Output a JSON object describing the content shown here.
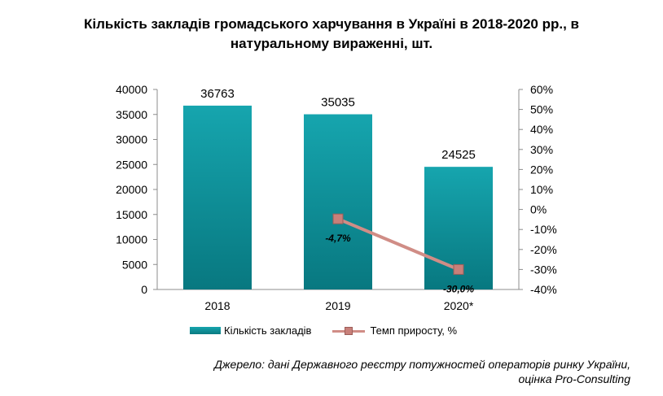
{
  "title_lines": [
    "Кількість закладів громадського харчування в Україні в 2018-2020 рр., в",
    "натуральному вираженні, шт."
  ],
  "source_lines": [
    "Джерело: дані Державного реєстру потужностей операторів ринку України,",
    "оцінка Pro-Consulting"
  ],
  "chart_data": {
    "type": "bar",
    "categories": [
      "2018",
      "2019",
      "2020*"
    ],
    "series": [
      {
        "name": "Кількість закладів",
        "type": "bar",
        "axis": "left",
        "values": [
          36763,
          35035,
          24525
        ],
        "labels": [
          "36763",
          "35035",
          "24525"
        ],
        "color": "#0e8f97"
      },
      {
        "name": "Темп приросту, %",
        "type": "line",
        "axis": "right",
        "values": [
          null,
          -4.7,
          -30.0
        ],
        "labels": [
          null,
          "-4,7%",
          "-30,0%"
        ],
        "color": "#c8807a"
      }
    ],
    "y_left": {
      "min": 0,
      "max": 40000,
      "ticks": [
        "0",
        "5000",
        "10000",
        "15000",
        "20000",
        "25000",
        "30000",
        "35000",
        "40000"
      ]
    },
    "y_right": {
      "min": -40,
      "max": 60,
      "ticks": [
        "-40%",
        "-30%",
        "-20%",
        "-10%",
        "0%",
        "10%",
        "20%",
        "30%",
        "40%",
        "50%",
        "60%"
      ]
    },
    "grid": false,
    "legend_position": "bottom"
  }
}
